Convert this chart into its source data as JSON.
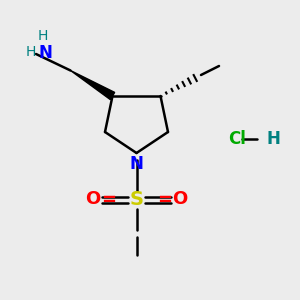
{
  "bg_color": "#ececec",
  "colors": {
    "C": "#000000",
    "N": "#0000ff",
    "S": "#cccc00",
    "O": "#ff0000",
    "teal": "#008080",
    "green": "#00aa00"
  },
  "figsize": [
    3.0,
    3.0
  ],
  "dpi": 100,
  "xlim": [
    0,
    10
  ],
  "ylim": [
    0,
    10
  ]
}
